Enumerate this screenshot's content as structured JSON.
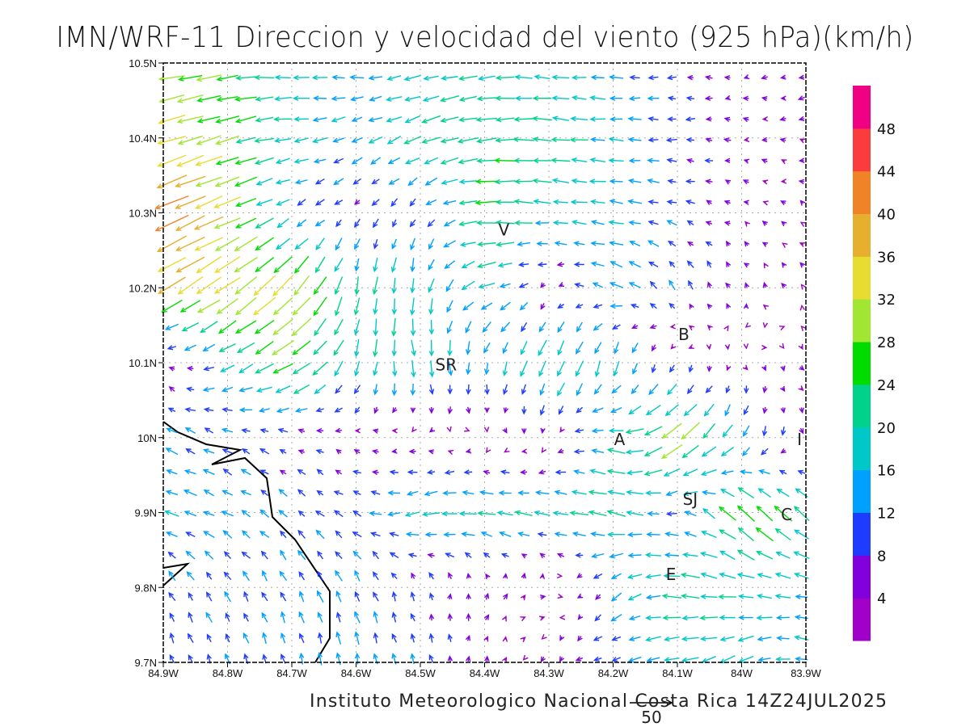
{
  "title": "IMN/WRF-11 Direccion y velocidad del viento (925 hPa)(km/h)",
  "footer": "Instituto Meteorologico Nacional Costa Rica  14Z24JUL2025",
  "reference_vector": {
    "value": 50,
    "label": "50"
  },
  "chart_data": {
    "type": "vector-field",
    "units": "km/h",
    "level": "925 hPa",
    "lon_range": [
      -84.9,
      -83.9
    ],
    "lat_range": [
      9.7,
      10.5
    ],
    "x_ticks": [
      "84.9W",
      "84.8W",
      "84.7W",
      "84.6W",
      "84.5W",
      "84.4W",
      "84.3W",
      "84.2W",
      "84.1W",
      "84W",
      "83.9W"
    ],
    "y_ticks": [
      "10.5N",
      "10.4N",
      "10.3N",
      "10.2N",
      "10.1N",
      "10N",
      "9.9N",
      "9.8N",
      "9.7N"
    ],
    "grid": true,
    "field_lats": [
      10.5,
      10.4,
      10.3,
      10.2,
      10.1,
      10.0,
      9.9,
      9.8,
      9.7
    ],
    "field_lons": [
      -84.9,
      -84.8,
      -84.7,
      -84.6,
      -84.5,
      -84.4,
      -84.3,
      -84.2,
      -84.1,
      -84.0,
      -83.9
    ],
    "field_uv": [
      [
        [
          -30,
          -5
        ],
        [
          -25,
          -3
        ],
        [
          -18,
          2
        ],
        [
          -15,
          1
        ],
        [
          -17,
          -4
        ],
        [
          -20,
          -2
        ],
        [
          -18,
          2
        ],
        [
          -14,
          0
        ],
        [
          -8,
          0
        ],
        [
          -5,
          0
        ],
        [
          -6,
          -3
        ]
      ],
      [
        [
          -32,
          -10
        ],
        [
          -26,
          -8
        ],
        [
          -18,
          -2
        ],
        [
          -12,
          -6
        ],
        [
          -20,
          -8
        ],
        [
          -23,
          -3
        ],
        [
          -22,
          2
        ],
        [
          -16,
          1
        ],
        [
          -10,
          0
        ],
        [
          -5,
          1
        ],
        [
          -5,
          0
        ]
      ],
      [
        [
          -40,
          -18
        ],
        [
          -30,
          -12
        ],
        [
          -10,
          -6
        ],
        [
          -6,
          -6
        ],
        [
          -5,
          -8
        ],
        [
          -25,
          0
        ],
        [
          -18,
          2
        ],
        [
          -16,
          2
        ],
        [
          -10,
          3
        ],
        [
          -4,
          2
        ],
        [
          -3,
          2
        ]
      ],
      [
        [
          -30,
          -18
        ],
        [
          -28,
          -20
        ],
        [
          -22,
          -24
        ],
        [
          -3,
          -20
        ],
        [
          -2,
          -18
        ],
        [
          -18,
          -6
        ],
        [
          -2,
          -3
        ],
        [
          -15,
          6
        ],
        [
          -5,
          10
        ],
        [
          -2,
          5
        ],
        [
          -2,
          2
        ]
      ],
      [
        [
          -2,
          4
        ],
        [
          -15,
          -8
        ],
        [
          -25,
          -14
        ],
        [
          -5,
          -18
        ],
        [
          4,
          -20
        ],
        [
          -2,
          -14
        ],
        [
          -10,
          -20
        ],
        [
          -4,
          -18
        ],
        [
          -2,
          -6
        ],
        [
          2,
          -3
        ],
        [
          3,
          -3
        ]
      ],
      [
        [
          -12,
          6
        ],
        [
          -10,
          5
        ],
        [
          -7,
          3
        ],
        [
          -5,
          2
        ],
        [
          -3,
          1
        ],
        [
          2,
          -1
        ],
        [
          1,
          -4
        ],
        [
          -18,
          4
        ],
        [
          -25,
          -20
        ],
        [
          -8,
          -15
        ],
        [
          3,
          -5
        ]
      ],
      [
        [
          -15,
          4
        ],
        [
          -12,
          6
        ],
        [
          -8,
          8
        ],
        [
          -10,
          5
        ],
        [
          -18,
          -5
        ],
        [
          -20,
          3
        ],
        [
          -18,
          3
        ],
        [
          -22,
          5
        ],
        [
          -10,
          0
        ],
        [
          -20,
          20
        ],
        [
          -18,
          15
        ]
      ],
      [
        [
          -6,
          10
        ],
        [
          -6,
          10
        ],
        [
          -6,
          11
        ],
        [
          -6,
          12
        ],
        [
          -2,
          8
        ],
        [
          2,
          6
        ],
        [
          6,
          3
        ],
        [
          -10,
          -10
        ],
        [
          -22,
          3
        ],
        [
          -18,
          3
        ],
        [
          -15,
          2
        ]
      ],
      [
        [
          -4,
          10
        ],
        [
          -4,
          10
        ],
        [
          -3,
          12
        ],
        [
          -2,
          14
        ],
        [
          -4,
          10
        ],
        [
          2,
          5
        ],
        [
          -3,
          -5
        ],
        [
          -10,
          -3
        ],
        [
          -18,
          -4
        ],
        [
          -16,
          -8
        ],
        [
          -14,
          3
        ]
      ]
    ],
    "colorbar": {
      "labels": [
        "48",
        "44",
        "40",
        "36",
        "32",
        "28",
        "24",
        "20",
        "16",
        "12",
        "8",
        "4"
      ],
      "bounds": [
        4,
        8,
        12,
        16,
        20,
        24,
        28,
        32,
        36,
        40,
        44,
        48
      ],
      "colors": [
        "#a000c8",
        "#8200dc",
        "#1e3cff",
        "#00a0ff",
        "#00c8c8",
        "#00d28c",
        "#00dc00",
        "#a0e632",
        "#e6dc32",
        "#e6af2d",
        "#f08228",
        "#fa3c3c",
        "#f00082"
      ]
    },
    "places": [
      {
        "label": "V",
        "lon": -84.37,
        "lat": 10.27
      },
      {
        "label": "SR",
        "lon": -84.46,
        "lat": 10.09
      },
      {
        "label": "B",
        "lon": -84.09,
        "lat": 10.13
      },
      {
        "label": "A",
        "lon": -84.19,
        "lat": 9.99
      },
      {
        "label": "SJ",
        "lon": -84.08,
        "lat": 9.91
      },
      {
        "label": "C",
        "lon": -83.93,
        "lat": 9.89
      },
      {
        "label": "E",
        "lon": -84.11,
        "lat": 9.81
      },
      {
        "label": "I",
        "lon": -83.91,
        "lat": 9.99
      }
    ]
  }
}
